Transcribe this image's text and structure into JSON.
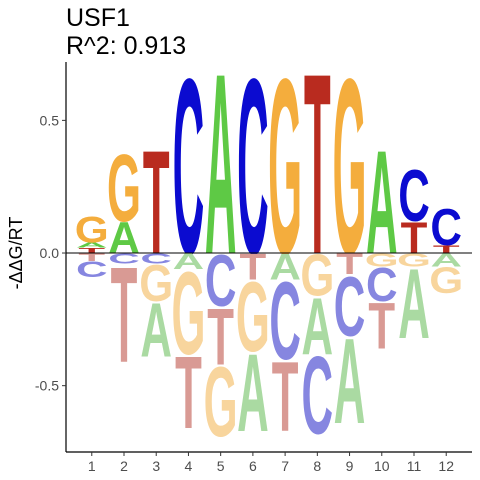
{
  "chart": {
    "title": "USF1",
    "subtitle": "R^2: 0.913",
    "ylabel": "-ΔΔG/RT",
    "xlabel": ""
  },
  "chart_data": {
    "type": "sequence-logo",
    "title": "USF1",
    "subtitle": "R^2: 0.913",
    "ylabel": "-ΔΔG/RT",
    "ylim": [
      -0.75,
      0.72
    ],
    "yticks": [
      0.5,
      0.0,
      -0.5
    ],
    "ytick_labels": [
      "0.5",
      "0.0",
      "-0.5"
    ],
    "positions": [
      1,
      2,
      3,
      4,
      5,
      6,
      7,
      8,
      9,
      10,
      11,
      12
    ],
    "colors": {
      "A": "#5ec945",
      "C": "#0b0bd0",
      "G": "#f4ad3d",
      "T": "#b92b1f",
      "A_neg": "#aadaa2",
      "C_neg": "#8686e0",
      "G_neg": "#f8d59d",
      "T_neg": "#d99a94"
    },
    "columns": [
      {
        "pos": 1,
        "pos_stack": [
          {
            "base": "T",
            "height": 0.02
          },
          {
            "base": "A",
            "height": 0.02
          },
          {
            "base": "G",
            "height": 0.1
          }
        ],
        "neg_stack": [
          {
            "base": "T",
            "height": 0.03
          },
          {
            "base": "C",
            "height": 0.06
          }
        ]
      },
      {
        "pos": 2,
        "pos_stack": [
          {
            "base": "A",
            "height": 0.12
          },
          {
            "base": "G",
            "height": 0.26
          }
        ],
        "neg_stack": [
          {
            "base": "C",
            "height": 0.04
          },
          {
            "base": "T",
            "height": 0.37
          }
        ]
      },
      {
        "pos": 3,
        "pos_stack": [
          {
            "base": "T",
            "height": 0.4
          }
        ],
        "neg_stack": [
          {
            "base": "C",
            "height": 0.04
          },
          {
            "base": "G",
            "height": 0.14
          },
          {
            "base": "A",
            "height": 0.21
          }
        ]
      },
      {
        "pos": 4,
        "pos_stack": [
          {
            "base": "C",
            "height": 0.68
          }
        ],
        "neg_stack": [
          {
            "base": "A",
            "height": 0.06
          },
          {
            "base": "G",
            "height": 0.32
          },
          {
            "base": "T",
            "height": 0.28
          }
        ]
      },
      {
        "pos": 5,
        "pos_stack": [
          {
            "base": "A",
            "height": 0.7
          }
        ],
        "neg_stack": [
          {
            "base": "C",
            "height": 0.2
          },
          {
            "base": "T",
            "height": 0.22
          },
          {
            "base": "G",
            "height": 0.27
          }
        ]
      },
      {
        "pos": 6,
        "pos_stack": [
          {
            "base": "C",
            "height": 0.68
          }
        ],
        "neg_stack": [
          {
            "base": "T",
            "height": 0.1
          },
          {
            "base": "G",
            "height": 0.27
          },
          {
            "base": "A",
            "height": 0.3
          }
        ]
      },
      {
        "pos": 7,
        "pos_stack": [
          {
            "base": "G",
            "height": 0.68
          }
        ],
        "neg_stack": [
          {
            "base": "A",
            "height": 0.1
          },
          {
            "base": "C",
            "height": 0.3
          },
          {
            "base": "T",
            "height": 0.27
          }
        ]
      },
      {
        "pos": 8,
        "pos_stack": [
          {
            "base": "T",
            "height": 0.7
          }
        ],
        "neg_stack": [
          {
            "base": "G",
            "height": 0.16
          },
          {
            "base": "A",
            "height": 0.22
          },
          {
            "base": "C",
            "height": 0.3
          }
        ]
      },
      {
        "pos": 9,
        "pos_stack": [
          {
            "base": "G",
            "height": 0.68
          }
        ],
        "neg_stack": [
          {
            "base": "T",
            "height": 0.08
          },
          {
            "base": "C",
            "height": 0.23
          },
          {
            "base": "A",
            "height": 0.33
          }
        ]
      },
      {
        "pos": 10,
        "pos_stack": [
          {
            "base": "A",
            "height": 0.4
          }
        ],
        "neg_stack": [
          {
            "base": "G",
            "height": 0.05
          },
          {
            "base": "C",
            "height": 0.13
          },
          {
            "base": "T",
            "height": 0.18
          }
        ]
      },
      {
        "pos": 11,
        "pos_stack": [
          {
            "base": "T",
            "height": 0.12
          },
          {
            "base": "C",
            "height": 0.2
          }
        ],
        "neg_stack": [
          {
            "base": "G",
            "height": 0.05
          },
          {
            "base": "A",
            "height": 0.27
          }
        ]
      },
      {
        "pos": 12,
        "pos_stack": [
          {
            "base": "T",
            "height": 0.03
          },
          {
            "base": "C",
            "height": 0.14
          }
        ],
        "neg_stack": [
          {
            "base": "A",
            "height": 0.05
          },
          {
            "base": "G",
            "height": 0.1
          }
        ]
      }
    ]
  }
}
